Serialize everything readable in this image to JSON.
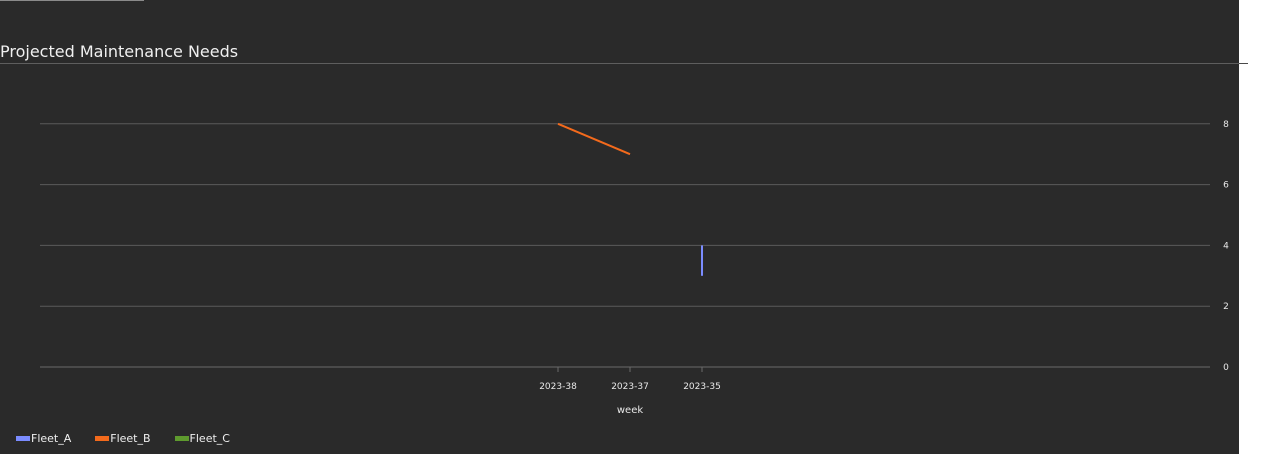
{
  "panel": {
    "title": "Projected Maintenance Needs"
  },
  "chart_data": {
    "type": "line",
    "title": "Projected Maintenance Needs",
    "xlabel": "week",
    "ylabel": "",
    "categories": [
      "2023-38",
      "2023-37",
      "2023-35"
    ],
    "ylim": [
      0,
      9
    ],
    "yticks": [
      0,
      2,
      4,
      6,
      8
    ],
    "y_axis_position": "right",
    "grid": true,
    "legend_position": "bottom-left",
    "series": [
      {
        "name": "Fleet_A",
        "color": "#7b8cff",
        "points": [
          {
            "x": "2023-35",
            "y": 4
          },
          {
            "x": "2023-35",
            "y": 3
          }
        ]
      },
      {
        "name": "Fleet_B",
        "color": "#f36a1c",
        "points": [
          {
            "x": "2023-38",
            "y": 8
          },
          {
            "x": "2023-37",
            "y": 7
          }
        ]
      },
      {
        "name": "Fleet_C",
        "color": "#5e9a2e",
        "points": []
      }
    ]
  },
  "colors": {
    "background": "#2a2a2a",
    "gridline": "#5a5a5a",
    "text": "#e8e8e8"
  }
}
